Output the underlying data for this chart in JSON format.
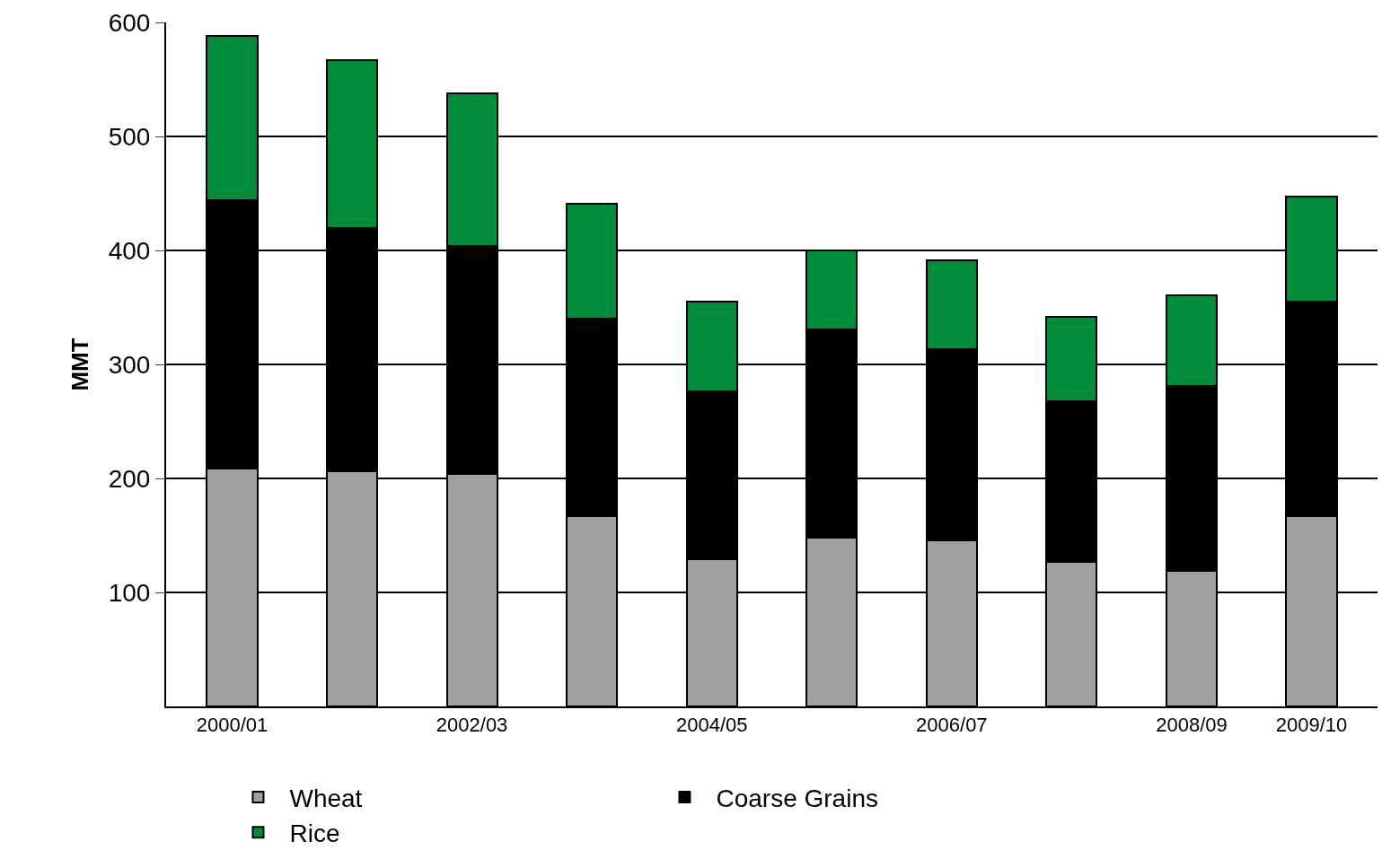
{
  "chart_data": {
    "type": "bar",
    "stacked": true,
    "ylabel": "MMT",
    "categories": [
      "2000/01",
      null,
      "2002/03",
      null,
      "2004/05",
      null,
      "2006/07",
      null,
      "2008/09",
      "2009/10"
    ],
    "series": [
      {
        "name": "Wheat",
        "color": "#a0a0a0",
        "values": [
          209,
          206,
          204,
          167,
          129,
          148,
          146,
          127,
          119,
          167
        ]
      },
      {
        "name": "Coarse Grains",
        "color": "#000000",
        "values": [
          235,
          214,
          200,
          173,
          147,
          183,
          167,
          141,
          162,
          188
        ]
      },
      {
        "name": "Rice",
        "color": "#008c3a",
        "values": [
          144,
          147,
          134,
          101,
          79,
          69,
          78,
          74,
          80,
          92
        ]
      }
    ],
    "ylim": [
      0,
      600
    ],
    "yticks": [
      100,
      200,
      300,
      400,
      500,
      600
    ],
    "grid": "y",
    "legend": "bottom"
  }
}
